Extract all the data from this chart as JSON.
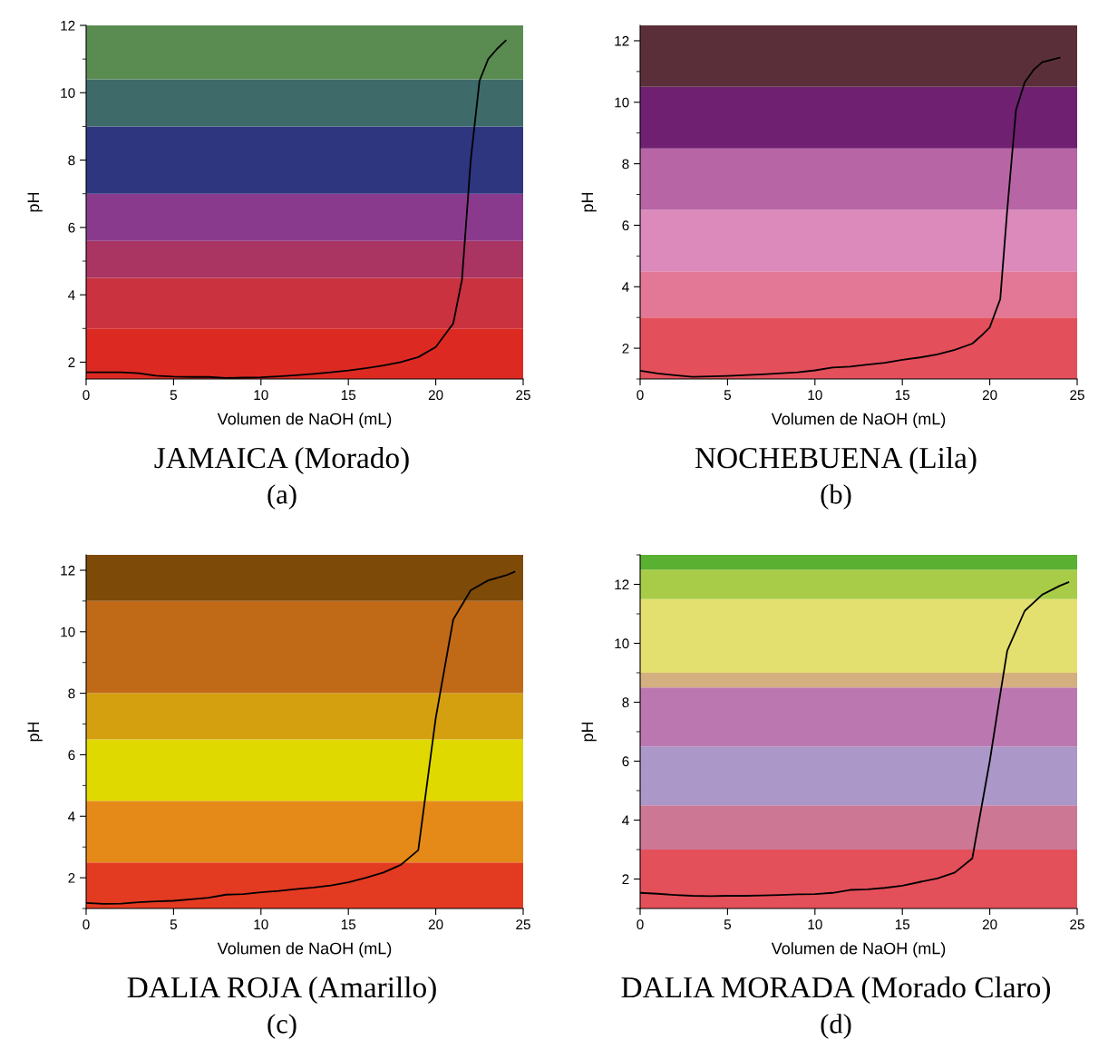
{
  "chart_data": [
    {
      "type": "line",
      "title": "JAMAICA (Morado)",
      "subtitle": "(a)",
      "xlabel": "Volumen de NaOH (mL)",
      "ylabel": "pH",
      "xlim": [
        0,
        25
      ],
      "xticks": [
        0,
        5,
        10,
        15,
        20,
        25
      ],
      "ylim": [
        1.5,
        12
      ],
      "yticks": [
        2,
        {
          "value": 3,
          "label": null
        },
        4,
        {
          "value": 5,
          "label": null
        },
        6,
        {
          "value": 7,
          "label": null
        },
        8,
        {
          "value": 9,
          "label": null
        },
        10,
        {
          "value": 11,
          "label": null
        },
        12
      ],
      "grid": false,
      "series": [
        {
          "color": "#000000",
          "x": [
            0,
            1,
            2,
            3,
            4,
            5,
            6,
            7,
            8,
            9,
            10,
            11,
            12,
            13,
            14,
            15,
            16,
            17,
            18,
            19,
            20,
            21,
            21.5,
            22,
            22.5,
            23,
            23.5,
            24
          ],
          "values": [
            1.7,
            1.7,
            1.7,
            1.67,
            1.6,
            1.57,
            1.56,
            1.56,
            1.53,
            1.54,
            1.55,
            1.58,
            1.61,
            1.65,
            1.7,
            1.75,
            1.82,
            1.9,
            2.0,
            2.15,
            2.45,
            3.15,
            4.45,
            8.0,
            10.35,
            11.0,
            11.3,
            11.55
          ]
        }
      ],
      "bands": [
        {
          "axis": "y",
          "from": 1.5,
          "to": 3,
          "color": "#dc2a22"
        },
        {
          "axis": "y",
          "from": 3,
          "to": 4.5,
          "color": "#c9323e"
        },
        {
          "axis": "y",
          "from": 4.5,
          "to": 5.6,
          "color": "#aa3462"
        },
        {
          "axis": "y",
          "from": 5.6,
          "to": 7,
          "color": "#8a3a8c"
        },
        {
          "axis": "y",
          "from": 7,
          "to": 9,
          "color": "#2e367f"
        },
        {
          "axis": "y",
          "from": 9,
          "to": 10.4,
          "color": "#3e6a6a"
        },
        {
          "axis": "y",
          "from": 10.4,
          "to": 12,
          "color": "#5a8c52"
        }
      ]
    },
    {
      "type": "line",
      "title": "NOCHEBUENA (Lila)",
      "subtitle": "(b)",
      "xlabel": "Volumen de NaOH (mL)",
      "ylabel": "pH",
      "xlim": [
        0,
        25
      ],
      "xticks": [
        0,
        5,
        10,
        15,
        20,
        25
      ],
      "ylim": [
        1,
        12.5
      ],
      "yticks": [
        {
          "value": 1,
          "label": null
        },
        2,
        {
          "value": 3,
          "label": null
        },
        4,
        {
          "value": 5,
          "label": null
        },
        6,
        {
          "value": 7,
          "label": null
        },
        8,
        {
          "value": 9,
          "label": null
        },
        10,
        {
          "value": 11,
          "label": null
        },
        12
      ],
      "grid": false,
      "series": [
        {
          "color": "#000000",
          "x": [
            0,
            1,
            2,
            3,
            5,
            7,
            9,
            10,
            11,
            12,
            13,
            14,
            15,
            16,
            17,
            18,
            19,
            19.5,
            20,
            20.6,
            21,
            21.5,
            22,
            22.5,
            23,
            24
          ],
          "values": [
            1.27,
            1.18,
            1.12,
            1.07,
            1.1,
            1.15,
            1.22,
            1.28,
            1.37,
            1.4,
            1.47,
            1.53,
            1.62,
            1.7,
            1.8,
            1.95,
            2.15,
            2.4,
            2.68,
            3.6,
            6.5,
            9.75,
            10.65,
            11.05,
            11.3,
            11.45
          ]
        }
      ],
      "bands": [
        {
          "axis": "y",
          "from": 1,
          "to": 3,
          "color": "#e34f5a"
        },
        {
          "axis": "y",
          "from": 3,
          "to": 4.5,
          "color": "#e27896"
        },
        {
          "axis": "y",
          "from": 4.5,
          "to": 6.5,
          "color": "#db8abb"
        },
        {
          "axis": "y",
          "from": 6.5,
          "to": 8.5,
          "color": "#b765a5"
        },
        {
          "axis": "y",
          "from": 8.5,
          "to": 10.5,
          "color": "#6f2070"
        },
        {
          "axis": "y",
          "from": 10.5,
          "to": 12.5,
          "color": "#5a2f3a"
        }
      ]
    },
    {
      "type": "line",
      "title": "DALIA ROJA (Amarillo)",
      "subtitle": "(c)",
      "xlabel": "Volumen de NaOH (mL)",
      "ylabel": "pH",
      "xlim": [
        0,
        25
      ],
      "xticks": [
        0,
        5,
        10,
        15,
        20,
        25
      ],
      "ylim": [
        1,
        12.5
      ],
      "yticks": [
        {
          "value": 1,
          "label": null
        },
        2,
        {
          "value": 3,
          "label": null
        },
        4,
        {
          "value": 5,
          "label": null
        },
        6,
        {
          "value": 7,
          "label": null
        },
        8,
        {
          "value": 9,
          "label": null
        },
        10,
        {
          "value": 11,
          "label": null
        },
        12
      ],
      "grid": false,
      "series": [
        {
          "color": "#000000",
          "x": [
            0,
            1,
            2,
            3,
            4,
            5,
            6,
            7,
            8,
            9,
            10,
            11,
            12,
            13,
            14,
            15,
            16,
            17,
            18,
            19,
            20,
            21,
            22,
            23,
            24,
            24.5
          ],
          "values": [
            1.18,
            1.15,
            1.16,
            1.2,
            1.23,
            1.25,
            1.3,
            1.35,
            1.45,
            1.47,
            1.53,
            1.57,
            1.63,
            1.68,
            1.75,
            1.85,
            2.0,
            2.17,
            2.42,
            2.9,
            7.2,
            10.4,
            11.35,
            11.67,
            11.83,
            11.95
          ]
        }
      ],
      "bands": [
        {
          "axis": "y",
          "from": 1,
          "to": 2.5,
          "color": "#e33a22"
        },
        {
          "axis": "y",
          "from": 2.5,
          "to": 4.5,
          "color": "#e58a18"
        },
        {
          "axis": "y",
          "from": 4.5,
          "to": 6.5,
          "color": "#e0d900"
        },
        {
          "axis": "y",
          "from": 6.5,
          "to": 8,
          "color": "#d4a010"
        },
        {
          "axis": "y",
          "from": 8,
          "to": 11,
          "color": "#c06a18"
        },
        {
          "axis": "y",
          "from": 11,
          "to": 12.5,
          "color": "#7e4a08"
        }
      ]
    },
    {
      "type": "line",
      "title": "DALIA MORADA (Morado Claro)",
      "subtitle": "(d)",
      "xlabel": "Volumen de NaOH (mL)",
      "ylabel": "pH",
      "xlim": [
        0,
        25
      ],
      "xticks": [
        0,
        5,
        10,
        15,
        20,
        25
      ],
      "ylim": [
        1,
        13
      ],
      "yticks": [
        {
          "value": 1,
          "label": null
        },
        2,
        {
          "value": 3,
          "label": null
        },
        4,
        {
          "value": 5,
          "label": null
        },
        6,
        {
          "value": 7,
          "label": null
        },
        8,
        {
          "value": 9,
          "label": null
        },
        10,
        {
          "value": 11,
          "label": null
        },
        12,
        {
          "value": 13,
          "label": null
        }
      ],
      "grid": false,
      "series": [
        {
          "color": "#000000",
          "x": [
            0,
            1,
            2,
            3,
            4,
            5,
            6,
            7,
            8,
            9,
            10,
            11,
            12,
            13,
            14,
            15,
            16,
            17,
            18,
            19,
            20,
            20.5,
            21,
            22,
            23,
            24,
            24.5
          ],
          "values": [
            1.53,
            1.5,
            1.46,
            1.43,
            1.42,
            1.43,
            1.43,
            1.44,
            1.46,
            1.48,
            1.49,
            1.53,
            1.63,
            1.65,
            1.7,
            1.77,
            1.9,
            2.02,
            2.22,
            2.7,
            6.0,
            7.9,
            9.75,
            11.1,
            11.65,
            11.95,
            12.07
          ]
        }
      ],
      "bands": [
        {
          "axis": "y",
          "from": 1,
          "to": 3,
          "color": "#e4505a"
        },
        {
          "axis": "y",
          "from": 3,
          "to": 4.5,
          "color": "#cc7895"
        },
        {
          "axis": "y",
          "from": 4.5,
          "to": 6.5,
          "color": "#ab97c8"
        },
        {
          "axis": "y",
          "from": 6.5,
          "to": 8.5,
          "color": "#bb78b0"
        },
        {
          "axis": "y",
          "from": 8.5,
          "to": 9,
          "color": "#d4b080"
        },
        {
          "axis": "y",
          "from": 9,
          "to": 11.5,
          "color": "#e4e070"
        },
        {
          "axis": "y",
          "from": 11.5,
          "to": 12.5,
          "color": "#a8cc48"
        },
        {
          "axis": "y",
          "from": 12.5,
          "to": 13,
          "color": "#5ab030"
        }
      ]
    }
  ]
}
